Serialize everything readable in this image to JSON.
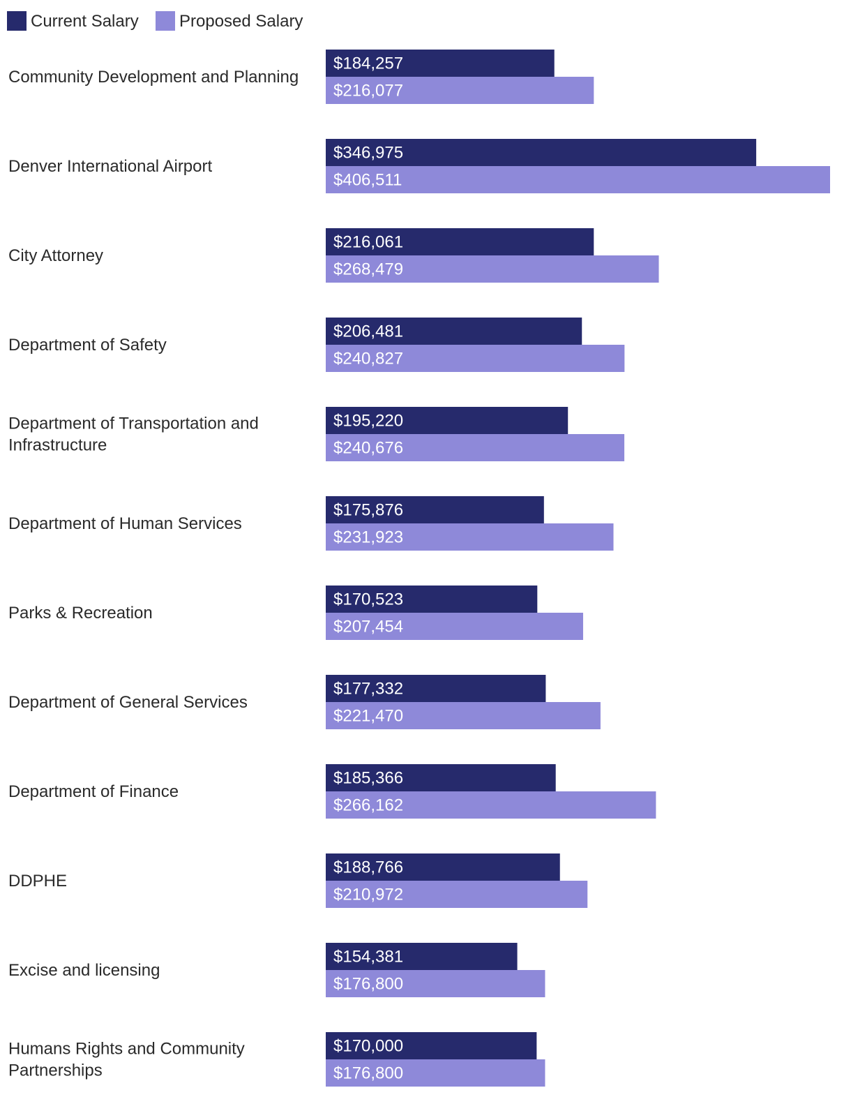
{
  "chart_data": {
    "type": "bar",
    "orientation": "horizontal",
    "legend_position": "top-left",
    "colors": {
      "current": "#262a6c",
      "proposed": "#8e89d9"
    },
    "xlim": [
      0,
      406511
    ],
    "series": [
      {
        "name": "Current Salary",
        "key": "current"
      },
      {
        "name": "Proposed Salary",
        "key": "proposed"
      }
    ],
    "categories": [
      {
        "label_lines": [
          "Community Development and Planning"
        ],
        "current": 184257,
        "proposed": 216077,
        "current_label": "$184,257",
        "proposed_label": "$216,077"
      },
      {
        "label_lines": [
          "Denver International Airport"
        ],
        "current": 346975,
        "proposed": 406511,
        "current_label": "$346,975",
        "proposed_label": "$406,511"
      },
      {
        "label_lines": [
          "City Attorney"
        ],
        "current": 216061,
        "proposed": 268479,
        "current_label": "$216,061",
        "proposed_label": "$268,479"
      },
      {
        "label_lines": [
          "Department of Safety"
        ],
        "current": 206481,
        "proposed": 240827,
        "current_label": "$206,481",
        "proposed_label": "$240,827"
      },
      {
        "label_lines": [
          "Department of Transportation and",
          "Infrastructure"
        ],
        "current": 195220,
        "proposed": 240676,
        "current_label": "$195,220",
        "proposed_label": "$240,676"
      },
      {
        "label_lines": [
          "Department of Human Services"
        ],
        "current": 175876,
        "proposed": 231923,
        "current_label": "$175,876",
        "proposed_label": "$231,923"
      },
      {
        "label_lines": [
          "Parks & Recreation"
        ],
        "current": 170523,
        "proposed": 207454,
        "current_label": "$170,523",
        "proposed_label": "$207,454"
      },
      {
        "label_lines": [
          "Department of General Services"
        ],
        "current": 177332,
        "proposed": 221470,
        "current_label": "$177,332",
        "proposed_label": "$221,470"
      },
      {
        "label_lines": [
          "Department of Finance"
        ],
        "current": 185366,
        "proposed": 266162,
        "current_label": "$185,366",
        "proposed_label": "$266,162"
      },
      {
        "label_lines": [
          "DDPHE"
        ],
        "current": 188766,
        "proposed": 210972,
        "current_label": "$188,766",
        "proposed_label": "$210,972"
      },
      {
        "label_lines": [
          "Excise and licensing"
        ],
        "current": 154381,
        "proposed": 176800,
        "current_label": "$154,381",
        "proposed_label": "$176,800"
      },
      {
        "label_lines": [
          "Humans Rights and Community",
          "Partnerships"
        ],
        "current": 170000,
        "proposed": 176800,
        "current_label": "$170,000",
        "proposed_label": "$176,800"
      }
    ]
  }
}
